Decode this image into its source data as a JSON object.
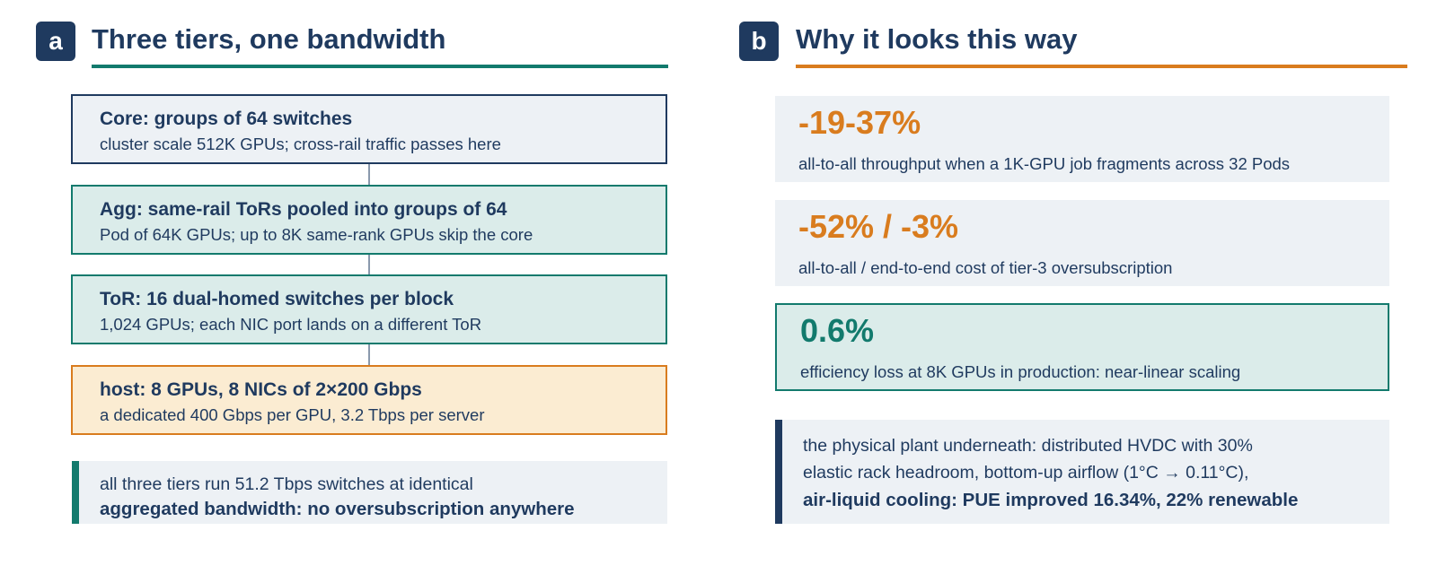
{
  "colors": {
    "navy": "#1f3a5f",
    "teal": "#127a6d",
    "orange": "#d97c1e",
    "teal_fill": "#dbecea",
    "cream_fill": "#fbecd2",
    "gray_fill": "#edf1f5"
  },
  "panel_a": {
    "badge": "a",
    "title": "Three tiers, one bandwidth",
    "tiers": [
      {
        "title": "Core: groups of 64 switches",
        "subtitle": "cluster scale 512K GPUs; cross-rail traffic passes here"
      },
      {
        "title": "Agg: same-rail ToRs pooled into groups of 64",
        "subtitle": "Pod of 64K GPUs; up to 8K same-rank GPUs skip the core"
      },
      {
        "title": "ToR: 16 dual-homed switches per block",
        "subtitle": "1,024 GPUs; each NIC port lands on a different ToR"
      },
      {
        "title": "host: 8 GPUs, 8 NICs of 2×200 Gbps",
        "subtitle": "a dedicated 400 Gbps per GPU, 3.2 Tbps per server"
      }
    ],
    "note": {
      "line1": "all three tiers run 51.2 Tbps switches at identical",
      "line2": "aggregated bandwidth: no oversubscription anywhere"
    }
  },
  "panel_b": {
    "badge": "b",
    "title": "Why it looks this way",
    "stats": [
      {
        "value": "-19-37%",
        "description": "all-to-all throughput when a 1K-GPU job fragments across 32 Pods"
      },
      {
        "value": "-52% / -3%",
        "description": "all-to-all / end-to-end cost of tier-3 oversubscription"
      },
      {
        "value": "0.6%",
        "description": "efficiency loss at 8K GPUs in production: near-linear scaling"
      }
    ],
    "note": {
      "line1": "the physical plant underneath: distributed HVDC with 30%",
      "line2": "elastic rack headroom, bottom-up airflow (1°C → 0.11°C),",
      "line3": "air-liquid cooling: PUE improved 16.34%, 22% renewable"
    }
  }
}
